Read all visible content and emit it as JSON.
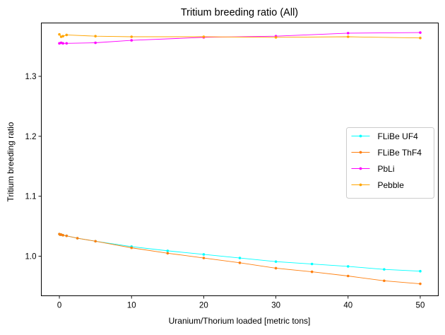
{
  "chart_data": {
    "type": "line",
    "title": "Tritium breeding ratio (All)",
    "xlabel": "Uranium/Thorium loaded [metric tons]",
    "ylabel": "Tritium breeding ratio",
    "xlim": [
      -2.5,
      52.5
    ],
    "ylim": [
      0.934,
      1.389
    ],
    "xticks": [
      0,
      10,
      20,
      30,
      40,
      50
    ],
    "yticks": [
      1.0,
      1.1,
      1.2,
      1.3
    ],
    "ytick_labels": [
      "1.0",
      "1.1",
      "1.2",
      "1.3"
    ],
    "grid": false,
    "legend_position": "center-right",
    "series": [
      {
        "name": "FLiBe UF4",
        "color": "#00ffff",
        "x": [
          0,
          0.1,
          0.25,
          0.5,
          1,
          2.5,
          5,
          10,
          15,
          20,
          25,
          30,
          35,
          40,
          45,
          50
        ],
        "y": [
          1.037,
          1.036,
          1.036,
          1.035,
          1.034,
          1.03,
          1.025,
          1.016,
          1.009,
          1.003,
          0.997,
          0.991,
          0.987,
          0.983,
          0.978,
          0.975
        ]
      },
      {
        "name": "FLiBe ThF4",
        "color": "#ff7f0e",
        "x": [
          0,
          0.1,
          0.25,
          0.5,
          1,
          2.5,
          5,
          10,
          15,
          20,
          25,
          30,
          35,
          40,
          45,
          50
        ],
        "y": [
          1.037,
          1.036,
          1.036,
          1.035,
          1.034,
          1.03,
          1.025,
          1.014,
          1.005,
          0.997,
          0.989,
          0.98,
          0.974,
          0.967,
          0.959,
          0.954
        ]
      },
      {
        "name": "PbLi",
        "color": "#ff00ff",
        "x": [
          0,
          0.25,
          0.5,
          1,
          5,
          10,
          20,
          30,
          40,
          50
        ],
        "y": [
          1.355,
          1.356,
          1.355,
          1.355,
          1.356,
          1.36,
          1.365,
          1.367,
          1.372,
          1.373
        ]
      },
      {
        "name": "Pebble",
        "color": "#ffa500",
        "x": [
          0,
          0.25,
          0.5,
          1,
          5,
          10,
          20,
          30,
          40,
          50
        ],
        "y": [
          1.37,
          1.366,
          1.367,
          1.369,
          1.367,
          1.366,
          1.366,
          1.365,
          1.366,
          1.364
        ]
      }
    ]
  }
}
